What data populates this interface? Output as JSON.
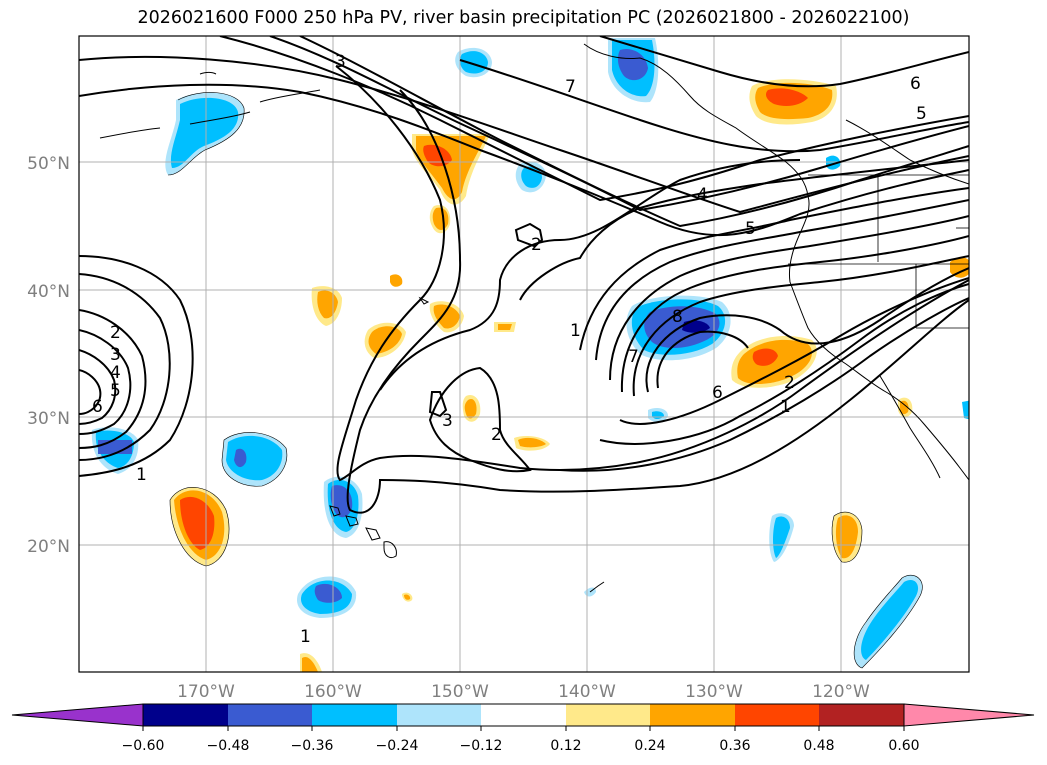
{
  "title": "2026021600 F000 250 hPa PV, river basin precipitation PC (2026021800 - 2026022100)",
  "latitude_labels": [
    "50°N",
    "40°N",
    "30°N",
    "20°N"
  ],
  "longitude_labels": [
    "170°W",
    "160°W",
    "150°W",
    "140°W",
    "130°W",
    "120°W"
  ],
  "colorbar": {
    "tick_labels": [
      "−0.60",
      "−0.48",
      "−0.36",
      "−0.24",
      "−0.12",
      "0.12",
      "0.24",
      "0.36",
      "0.48",
      "0.60"
    ],
    "colors": [
      "#9932cc",
      "#00008b",
      "#3a5bd1",
      "#00bfff",
      "#aee4fb",
      "#ffffff",
      "#ffe98a",
      "#ffa500",
      "#ff4500",
      "#b22222",
      "#ff88aa"
    ]
  },
  "contour_labels": [
    "3",
    "7",
    "6",
    "5",
    "4",
    "5",
    "2",
    "1",
    "8",
    "7",
    "6",
    "2",
    "1",
    "2",
    "3",
    "4",
    "5",
    "6",
    "1",
    "3",
    "2",
    "1"
  ]
}
